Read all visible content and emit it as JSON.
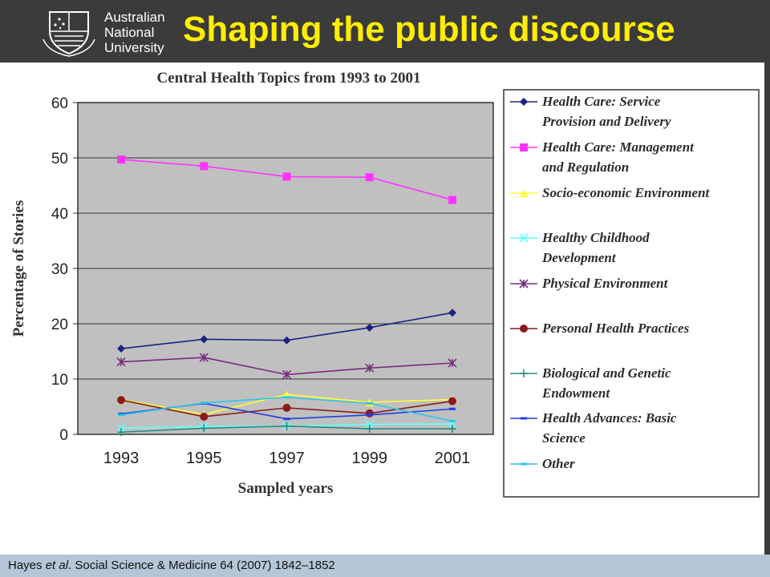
{
  "header": {
    "university_lines": [
      "Australian",
      "National",
      "University"
    ],
    "title": "Shaping the public discourse"
  },
  "footer": {
    "author": "Hayes ",
    "etal": "et al",
    "rest": ". Social Science & Medicine 64 (2007) 1842–1852"
  },
  "colors": {
    "header_bg": "#3b3b3b",
    "title": "#ffee00",
    "plot_bg": "#c0c0c0",
    "footer_bg": "#b5c7d6"
  },
  "chart_data": {
    "type": "line",
    "title": "Central Health Topics from 1993 to 2001",
    "xlabel": "Sampled years",
    "ylabel": "Percentage of Stories",
    "categories": [
      "1993",
      "1995",
      "1997",
      "1999",
      "2001"
    ],
    "ylim": [
      0,
      60
    ],
    "yticks": [
      0,
      10,
      20,
      30,
      40,
      50,
      60
    ],
    "grid": true,
    "legend_position": "right",
    "series": [
      {
        "name": "Health Care: Service Provision and Delivery",
        "legend_lines": [
          "Health Care: Service",
          "Provision and Delivery"
        ],
        "color": "#1a237e",
        "marker": "diamond",
        "values": [
          15.5,
          17.2,
          17.0,
          19.3,
          22.0
        ]
      },
      {
        "name": "Health Care: Management and Regulation",
        "legend_lines": [
          "Health Care: Management",
          "and Regulation"
        ],
        "color": "#ff33ff",
        "marker": "square",
        "values": [
          49.7,
          48.5,
          46.6,
          46.5,
          42.4
        ]
      },
      {
        "name": "Socio-economic Environment",
        "legend_lines": [
          "Socio-economic Environment"
        ],
        "color": "#ffff33",
        "marker": "triangle",
        "values": [
          6.3,
          3.6,
          7.2,
          5.8,
          6.3
        ]
      },
      {
        "name": "Healthy Childhood Development",
        "legend_lines": [
          "Healthy Childhood",
          "Development"
        ],
        "color": "#66ffff",
        "marker": "x",
        "values": [
          1.1,
          1.4,
          1.5,
          1.8,
          1.9
        ]
      },
      {
        "name": "Physical Environment",
        "legend_lines": [
          "Physical Environment"
        ],
        "color": "#772d7d",
        "marker": "star",
        "values": [
          13.1,
          13.9,
          10.8,
          12.0,
          12.9
        ]
      },
      {
        "name": "Personal Health Practices",
        "legend_lines": [
          "Personal Health Practices"
        ],
        "color": "#8b1a1a",
        "marker": "circle",
        "values": [
          6.2,
          3.2,
          4.8,
          3.8,
          6.0
        ]
      },
      {
        "name": "Biological and Genetic Endowment",
        "legend_lines": [
          "Biological and Genetic",
          "Endowment"
        ],
        "color": "#2a8a80",
        "marker": "plus",
        "values": [
          0.4,
          1.1,
          1.5,
          1.0,
          1.0
        ]
      },
      {
        "name": "Health Advances: Basic Science",
        "legend_lines": [
          "Health Advances: Basic",
          "Science"
        ],
        "color": "#1f3fe0",
        "marker": "dash",
        "values": [
          3.7,
          5.6,
          2.8,
          3.5,
          4.6
        ]
      },
      {
        "name": "Other",
        "legend_lines": [
          "Other"
        ],
        "color": "#2ec4e6",
        "marker": "dash",
        "values": [
          3.5,
          5.7,
          6.7,
          5.6,
          2.4
        ]
      }
    ]
  }
}
